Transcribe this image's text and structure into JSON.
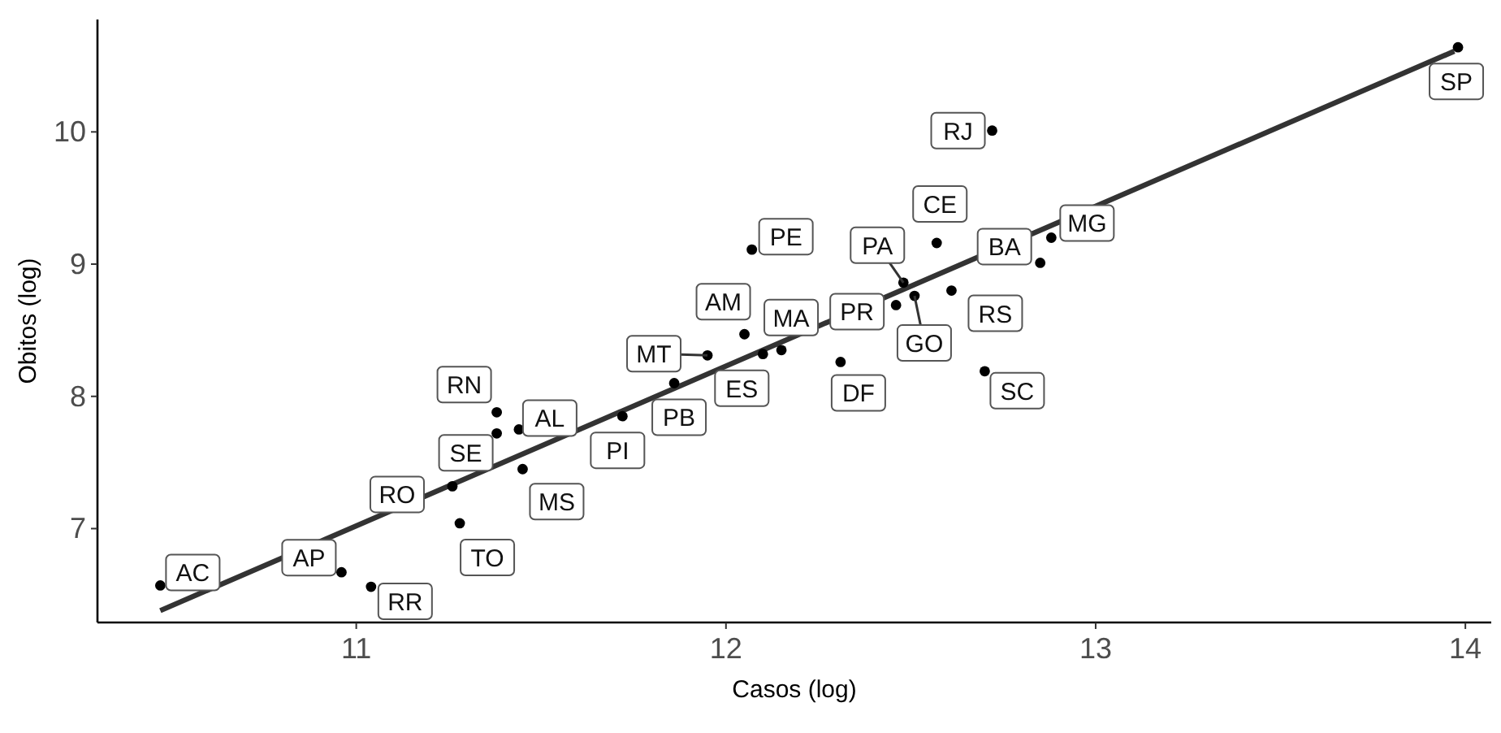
{
  "chart_data": {
    "type": "scatter",
    "xlabel": "Casos (log)",
    "ylabel": "Obitos (log)",
    "xlim": [
      10.3,
      14.07
    ],
    "ylim": [
      6.29,
      10.85
    ],
    "xticks": [
      11,
      12,
      13,
      14
    ],
    "yticks": [
      7,
      8,
      9,
      10
    ],
    "grid": false,
    "series": [
      {
        "marker": "circle",
        "color": "#000000",
        "x": [
          10.47,
          10.96,
          11.04,
          11.26,
          11.28,
          11.38,
          11.38,
          11.44,
          11.45,
          11.72,
          11.86,
          11.95,
          12.05,
          12.07,
          12.1,
          12.15,
          12.31,
          12.46,
          12.48,
          12.51,
          12.57,
          12.61,
          12.7,
          12.85,
          12.88,
          12.72,
          13.98
        ],
        "values": [
          6.57,
          6.67,
          6.56,
          7.32,
          7.04,
          7.88,
          7.72,
          7.75,
          7.45,
          7.85,
          8.1,
          8.31,
          8.47,
          9.11,
          8.32,
          8.35,
          8.26,
          8.69,
          8.86,
          8.76,
          9.16,
          8.8,
          8.19,
          9.01,
          9.2,
          10.01,
          10.64
        ]
      },
      {
        "type": "line",
        "color": "#333333",
        "x": [
          10.47,
          13.97
        ],
        "values": [
          6.38,
          10.61
        ]
      }
    ],
    "annotations": [
      {
        "text": "AC",
        "x": 10.47,
        "y": 6.57
      },
      {
        "text": "AP",
        "x": 10.96,
        "y": 6.67
      },
      {
        "text": "RR",
        "x": 11.04,
        "y": 6.56
      },
      {
        "text": "RO",
        "x": 11.26,
        "y": 7.32
      },
      {
        "text": "TO",
        "x": 11.28,
        "y": 7.04
      },
      {
        "text": "RN",
        "x": 11.38,
        "y": 7.88
      },
      {
        "text": "SE",
        "x": 11.38,
        "y": 7.72
      },
      {
        "text": "AL",
        "x": 11.44,
        "y": 7.75
      },
      {
        "text": "MS",
        "x": 11.45,
        "y": 7.45
      },
      {
        "text": "PI",
        "x": 11.72,
        "y": 7.85
      },
      {
        "text": "PB",
        "x": 11.86,
        "y": 8.1
      },
      {
        "text": "MT",
        "x": 11.95,
        "y": 8.31
      },
      {
        "text": "AM",
        "x": 12.05,
        "y": 8.47
      },
      {
        "text": "PE",
        "x": 12.07,
        "y": 9.11
      },
      {
        "text": "ES",
        "x": 12.1,
        "y": 8.32
      },
      {
        "text": "MA",
        "x": 12.15,
        "y": 8.35
      },
      {
        "text": "DF",
        "x": 12.31,
        "y": 8.26
      },
      {
        "text": "PR",
        "x": 12.46,
        "y": 8.69
      },
      {
        "text": "PA",
        "x": 12.48,
        "y": 8.86
      },
      {
        "text": "GO",
        "x": 12.51,
        "y": 8.76
      },
      {
        "text": "CE",
        "x": 12.57,
        "y": 9.16
      },
      {
        "text": "RS",
        "x": 12.61,
        "y": 8.8
      },
      {
        "text": "SC",
        "x": 12.7,
        "y": 8.19
      },
      {
        "text": "BA",
        "x": 12.85,
        "y": 9.01
      },
      {
        "text": "MG",
        "x": 12.88,
        "y": 9.2
      },
      {
        "text": "RJ",
        "x": 12.72,
        "y": 10.01
      },
      {
        "text": "SP",
        "x": 13.98,
        "y": 10.64
      }
    ]
  }
}
